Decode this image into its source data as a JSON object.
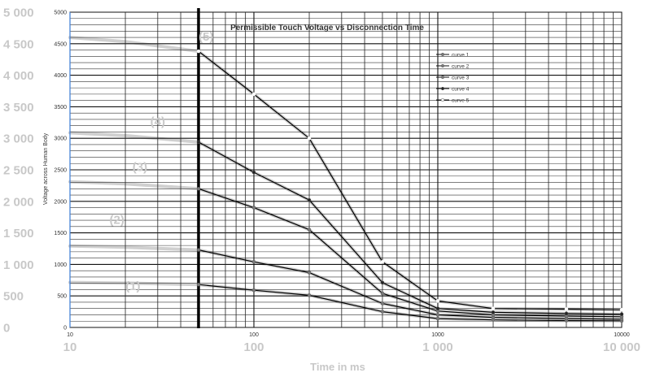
{
  "chart_data": {
    "type": "line",
    "title": "Permissible Touch Voltage vs Disconnection Time",
    "xlabel": "Time in ms",
    "ylabel": "Voltage across Human Body",
    "x_scale": "log",
    "xlim": [
      10,
      10000
    ],
    "ylim": [
      0,
      5000
    ],
    "y_ticks": [
      "0",
      "500",
      "1000",
      "1500",
      "2000",
      "2500",
      "3000",
      "3500",
      "4000",
      "4500",
      "5000"
    ],
    "x_ticks": [
      "10",
      "100",
      "1000",
      "10000"
    ],
    "x_ticks_large": [
      "10",
      "100",
      "1 000",
      "10 000"
    ],
    "y_ticks_large": [
      "0",
      "500",
      "1 000",
      "1 500",
      "2 000",
      "2 500",
      "3 000",
      "3 500",
      "4 000",
      "4 500",
      "5 000"
    ],
    "grid": true,
    "legend_position": "top-right",
    "x": [
      50,
      100,
      200,
      500,
      1000,
      2000,
      5000,
      10000
    ],
    "series": [
      {
        "name": "curve 1",
        "values": [
          680,
          590,
          510,
          250,
          140,
          120,
          110,
          105
        ]
      },
      {
        "name": "curve 2",
        "values": [
          1230,
          1040,
          870,
          380,
          200,
          160,
          140,
          130
        ]
      },
      {
        "name": "curve 3",
        "values": [
          2200,
          1900,
          1550,
          540,
          260,
          200,
          180,
          170
        ]
      },
      {
        "name": "curve 4",
        "values": [
          2940,
          2460,
          2020,
          710,
          300,
          240,
          220,
          210
        ]
      },
      {
        "name": "curve 5",
        "values": [
          4380,
          3700,
          3000,
          1040,
          420,
          300,
          290,
          280
        ]
      }
    ],
    "region_labels": [
      "(1)",
      "(2)",
      "(3)",
      "(4)",
      "(5)"
    ],
    "colors": {
      "series_line": "#000000",
      "marker": "#7a7a7a",
      "ghost": "#d0d0d0",
      "left_axis": "#3a7bd5"
    }
  }
}
